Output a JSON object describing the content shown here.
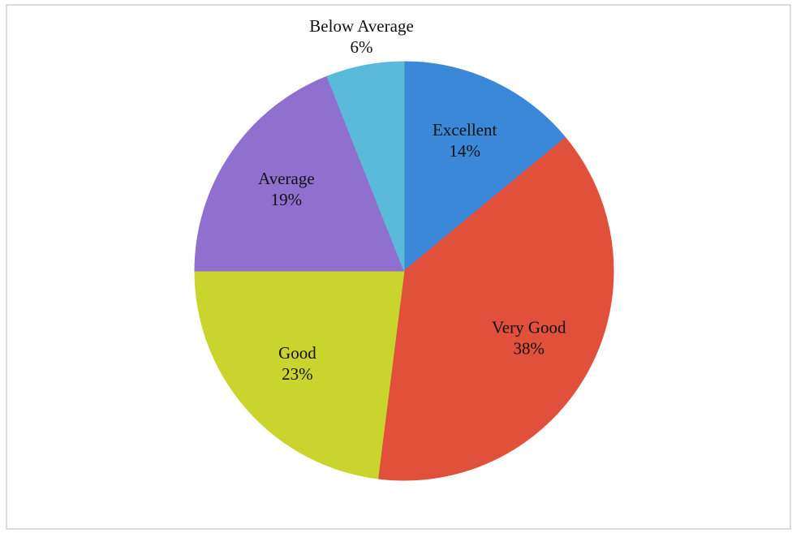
{
  "chart_data": {
    "type": "pie",
    "categories": [
      "Excellent",
      "Very Good",
      "Good",
      "Average",
      "Below Average"
    ],
    "values": [
      14,
      38,
      23,
      19,
      6
    ],
    "value_labels": [
      "14%",
      "38%",
      "23%",
      "19%",
      "6%"
    ],
    "colors": [
      "#3b87d8",
      "#e0503b",
      "#c9d42c",
      "#8f70cf",
      "#5bb9d9"
    ]
  }
}
